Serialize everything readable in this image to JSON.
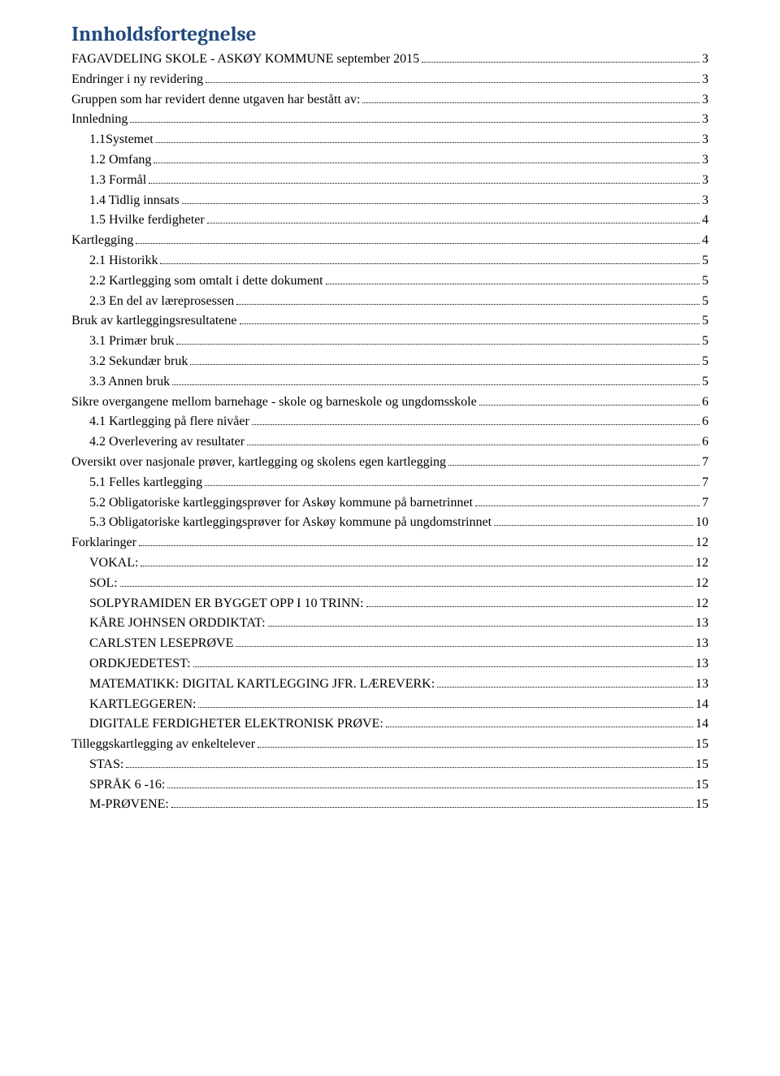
{
  "title": "Innholdsfortegnelse",
  "toc": [
    {
      "label": "FAGAVDELING SKOLE - ASKØY KOMMUNE september 2015",
      "page": "3",
      "level": 0
    },
    {
      "label": "Endringer i ny revidering",
      "page": "3",
      "level": 0
    },
    {
      "label": "Gruppen som har revidert denne utgaven har bestått av:",
      "page": "3",
      "level": 0
    },
    {
      "label": "Innledning",
      "page": "3",
      "level": 0
    },
    {
      "label": "1.1Systemet",
      "page": "3",
      "level": 1
    },
    {
      "label": "1.2 Omfang",
      "page": "3",
      "level": 1
    },
    {
      "label": "1.3 Formål",
      "page": "3",
      "level": 1
    },
    {
      "label": "1.4 Tidlig innsats",
      "page": "3",
      "level": 1
    },
    {
      "label": "1.5 Hvilke ferdigheter",
      "page": "4",
      "level": 1
    },
    {
      "label": "Kartlegging",
      "page": "4",
      "level": 0
    },
    {
      "label": "2.1 Historikk",
      "page": "5",
      "level": 1
    },
    {
      "label": "2.2 Kartlegging som omtalt i dette dokument",
      "page": "5",
      "level": 1
    },
    {
      "label": "2.3 En del av læreprosessen",
      "page": "5",
      "level": 1
    },
    {
      "label": "Bruk av kartleggingsresultatene",
      "page": "5",
      "level": 0
    },
    {
      "label": "3.1 Primær bruk",
      "page": "5",
      "level": 1
    },
    {
      "label": "3.2 Sekundær bruk",
      "page": "5",
      "level": 1
    },
    {
      "label": "3.3 Annen bruk",
      "page": "5",
      "level": 1
    },
    {
      "label": "Sikre overgangene mellom barnehage - skole og barneskole og ungdomsskole",
      "page": "6",
      "level": 0
    },
    {
      "label": "4.1 Kartlegging på flere nivåer",
      "page": "6",
      "level": 1
    },
    {
      "label": "4.2 Overlevering av resultater",
      "page": "6",
      "level": 1
    },
    {
      "label": "Oversikt over nasjonale prøver, kartlegging og skolens egen kartlegging",
      "page": "7",
      "level": 0
    },
    {
      "label": "5.1 Felles kartlegging",
      "page": "7",
      "level": 1
    },
    {
      "label": "5.2 Obligatoriske kartleggingsprøver for Askøy kommune på barnetrinnet",
      "page": "7",
      "level": 1
    },
    {
      "label": "5.3 Obligatoriske kartleggingsprøver for Askøy kommune på ungdomstrinnet",
      "page": "10",
      "level": 1
    },
    {
      "label": "Forklaringer",
      "page": "12",
      "level": 0
    },
    {
      "label": "VOKAL:",
      "page": "12",
      "level": 1
    },
    {
      "label": "SOL:",
      "page": "12",
      "level": 1
    },
    {
      "label": "SOLPYRAMIDEN ER BYGGET OPP I 10 TRINN:",
      "page": "12",
      "level": 1
    },
    {
      "label": "KÅRE JOHNSEN ORDDIKTAT:",
      "page": "13",
      "level": 1
    },
    {
      "label": "CARLSTEN LESEPRØVE",
      "page": "13",
      "level": 1
    },
    {
      "label": "ORDKJEDETEST:",
      "page": "13",
      "level": 1
    },
    {
      "label": "MATEMATIKK: DIGITAL KARTLEGGING JFR. LÆREVERK:",
      "page": "13",
      "level": 1
    },
    {
      "label": "KARTLEGGEREN:",
      "page": "14",
      "level": 1
    },
    {
      "label": "DIGITALE FERDIGHETER ELEKTRONISK PRØVE:",
      "page": "14",
      "level": 1
    },
    {
      "label": "Tilleggskartlegging av enkeltelever",
      "page": "15",
      "level": 0
    },
    {
      "label": "STAS:",
      "page": "15",
      "level": 1
    },
    {
      "label": "SPRÅK 6 -16:",
      "page": "15",
      "level": 1
    },
    {
      "label": "M-PRØVENE:",
      "page": "15",
      "level": 1
    }
  ]
}
